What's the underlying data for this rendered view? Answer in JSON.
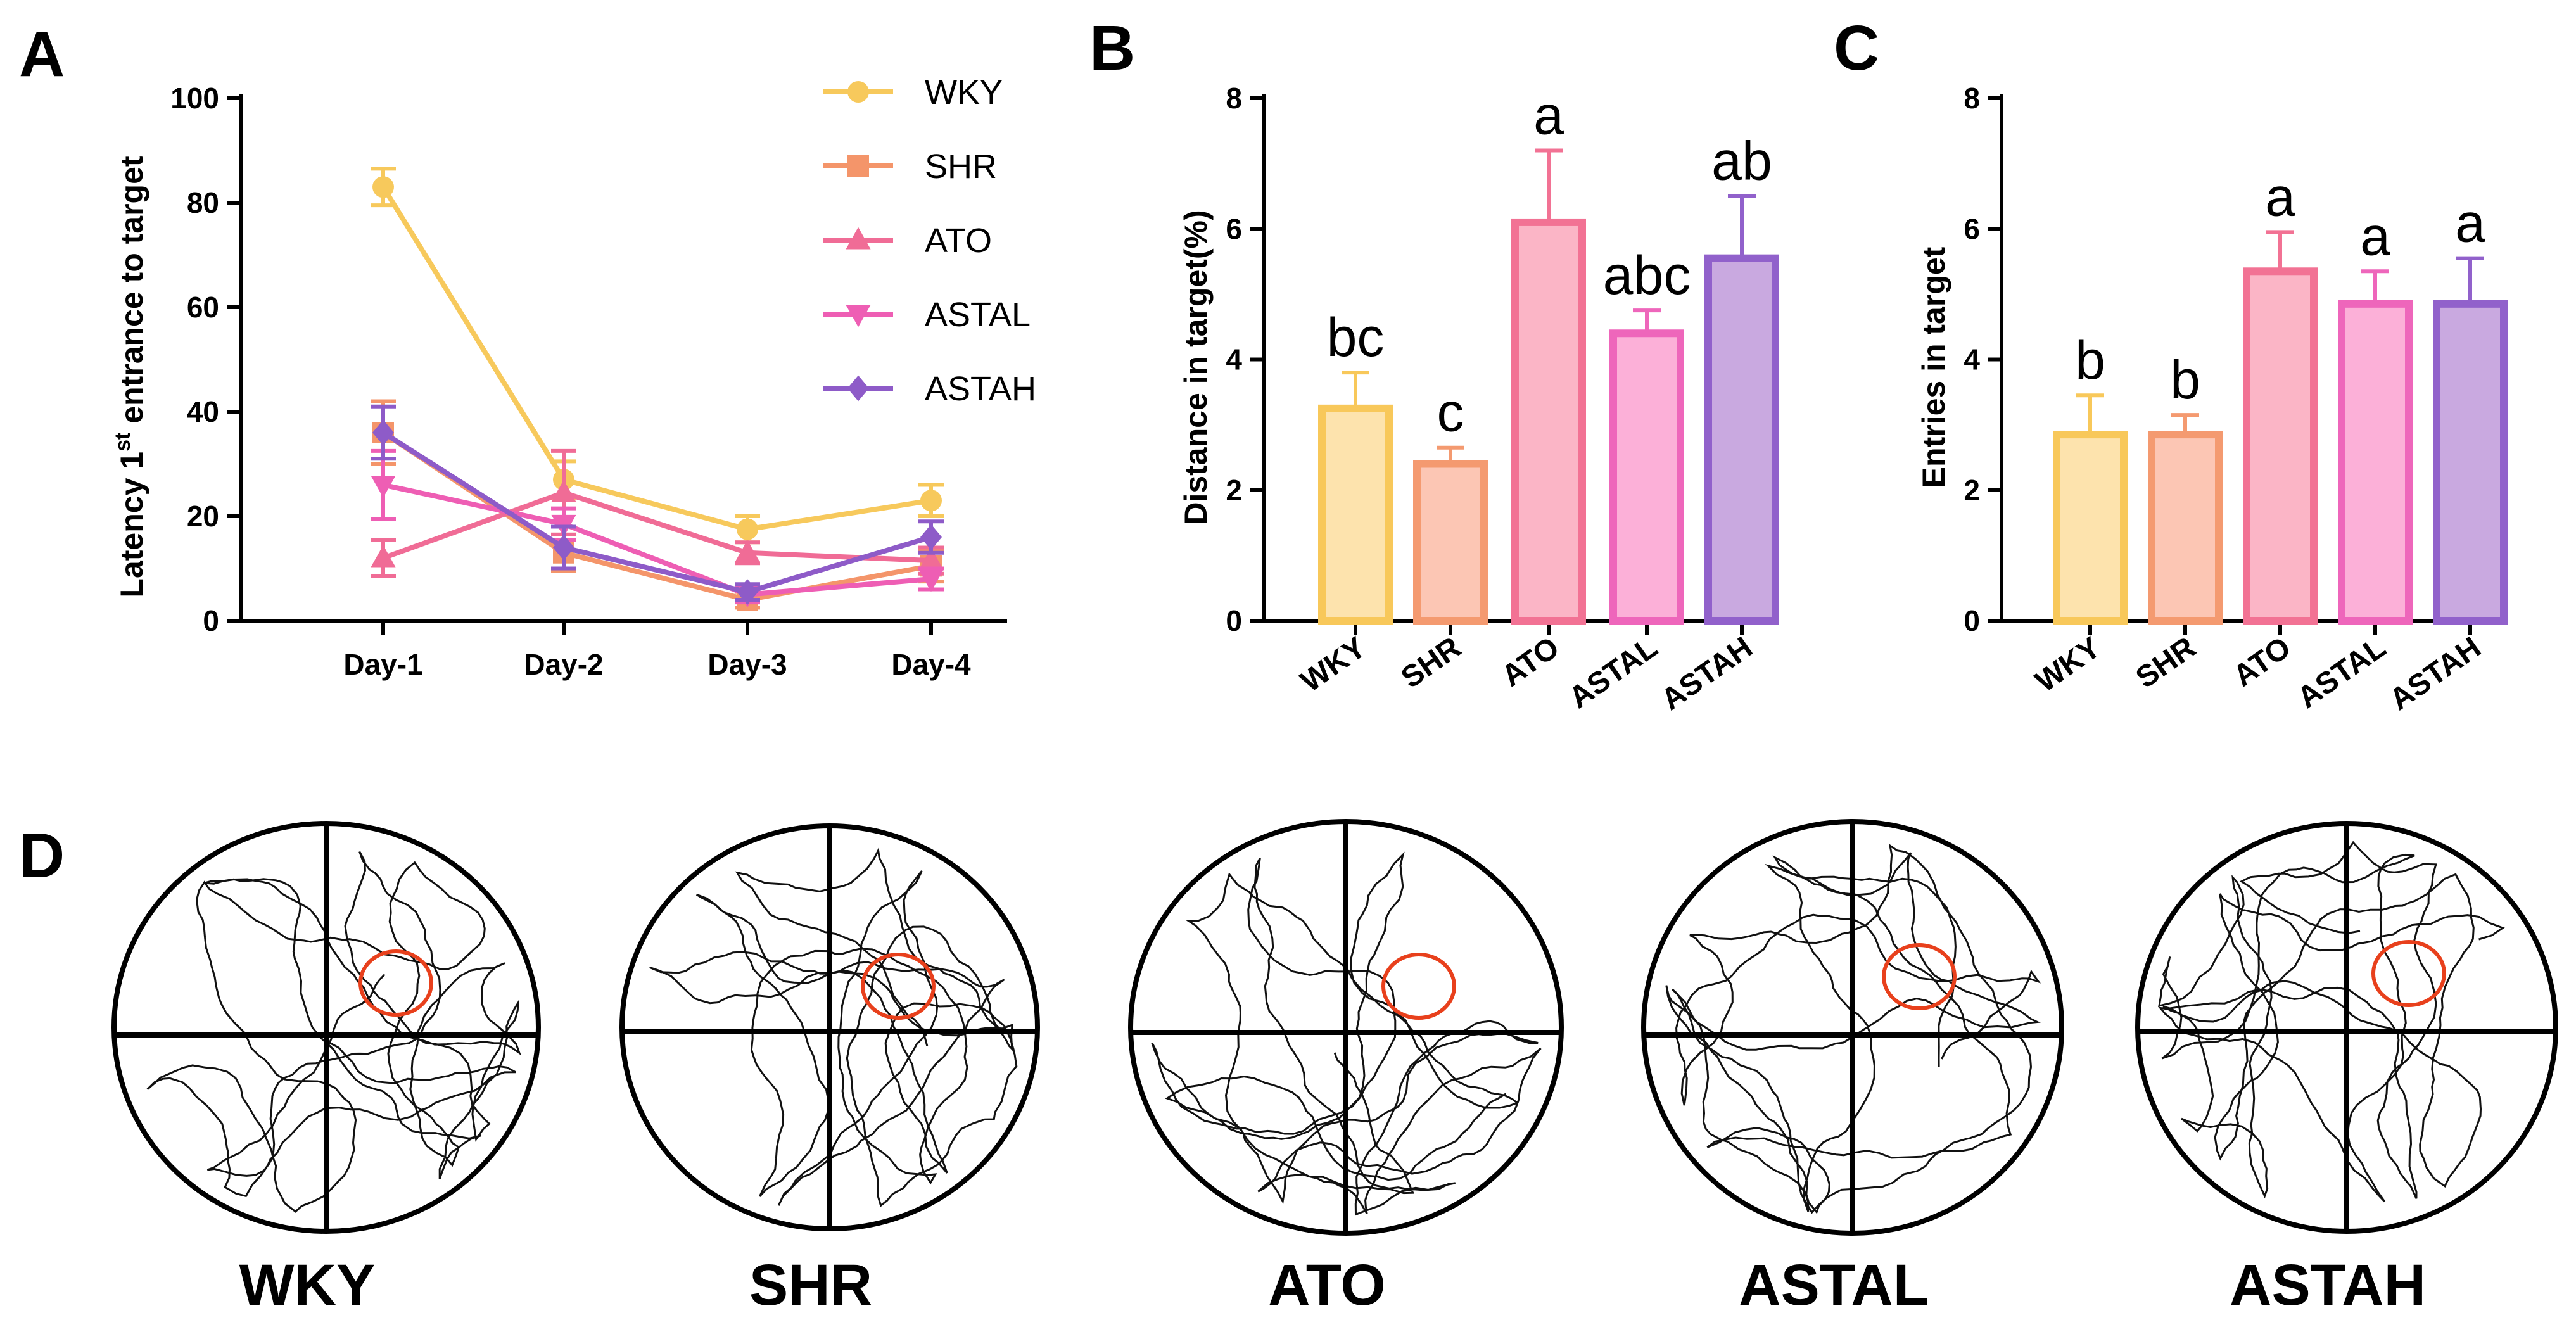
{
  "panels": {
    "a": "A",
    "b": "B",
    "c": "C",
    "d": "D"
  },
  "chart_data": [
    {
      "id": "A",
      "type": "line",
      "ylabel_prefix": "Latency 1",
      "ylabel_sup": "st",
      "ylabel_suffix": " entrance to target",
      "xlabel": "",
      "categories": [
        "Day-1",
        "Day-2",
        "Day-3",
        "Day-4"
      ],
      "ylim": [
        0,
        100
      ],
      "yticks": [
        0,
        20,
        40,
        60,
        80,
        100
      ],
      "legend_position": "top-right",
      "series": [
        {
          "name": "WKY",
          "color": "#F7C95C",
          "marker": "circle",
          "values": [
            83,
            27,
            17.5,
            23
          ],
          "err": [
            3.5,
            3.5,
            2.5,
            3
          ]
        },
        {
          "name": "SHR",
          "color": "#F4956A",
          "marker": "square",
          "values": [
            36,
            13,
            4,
            10.5
          ],
          "err": [
            6,
            3.5,
            1.5,
            3
          ]
        },
        {
          "name": "ATO",
          "color": "#F06C96",
          "marker": "triangle-up",
          "values": [
            12,
            24.5,
            13,
            11.5
          ],
          "err": [
            3.5,
            8,
            2,
            2.5
          ]
        },
        {
          "name": "ASTAL",
          "color": "#EE5EB4",
          "marker": "triangle-down",
          "values": [
            26,
            18.5,
            5,
            8
          ],
          "err": [
            6.5,
            3,
            1.5,
            2
          ]
        },
        {
          "name": "ASTAH",
          "color": "#8E5BC8",
          "marker": "diamond",
          "values": [
            36,
            14,
            5.5,
            16
          ],
          "err": [
            5,
            4,
            1.5,
            3
          ]
        }
      ]
    },
    {
      "id": "B",
      "type": "bar",
      "ylabel": "Distance in target(%)",
      "categories": [
        "WKY",
        "SHR",
        "ATO",
        "ASTAL",
        "ASTAH"
      ],
      "values": [
        3.25,
        2.4,
        6.1,
        4.4,
        5.55
      ],
      "err": [
        0.55,
        0.25,
        1.1,
        0.35,
        0.95
      ],
      "significance": [
        "bc",
        "c",
        "a",
        "abc",
        "ab"
      ],
      "ylim": [
        0,
        8
      ],
      "yticks": [
        0,
        2,
        4,
        6,
        8
      ]
    },
    {
      "id": "C",
      "type": "bar",
      "ylabel": "Entries in target",
      "categories": [
        "WKY",
        "SHR",
        "ATO",
        "ASTAL",
        "ASTAH"
      ],
      "values": [
        2.85,
        2.85,
        5.35,
        4.85,
        4.85
      ],
      "err": [
        0.6,
        0.3,
        0.6,
        0.5,
        0.7
      ],
      "significance": [
        "b",
        "b",
        "a",
        "a",
        "a"
      ],
      "ylim": [
        0,
        8
      ],
      "yticks": [
        0,
        2,
        4,
        6,
        8
      ]
    }
  ],
  "bar_colors": {
    "fill": [
      "#FDE3AD",
      "#FCC6B4",
      "#FBB5C6",
      "#FCB0D8",
      "#C9A9E0"
    ],
    "stroke": [
      "#F8C85A",
      "#F49A70",
      "#F27294",
      "#EE66BB",
      "#9161CB"
    ]
  },
  "mazes": {
    "labels": [
      "WKY",
      "SHR",
      "ATO",
      "ASTAL",
      "ASTAH"
    ],
    "target_color": "#E8401C"
  }
}
